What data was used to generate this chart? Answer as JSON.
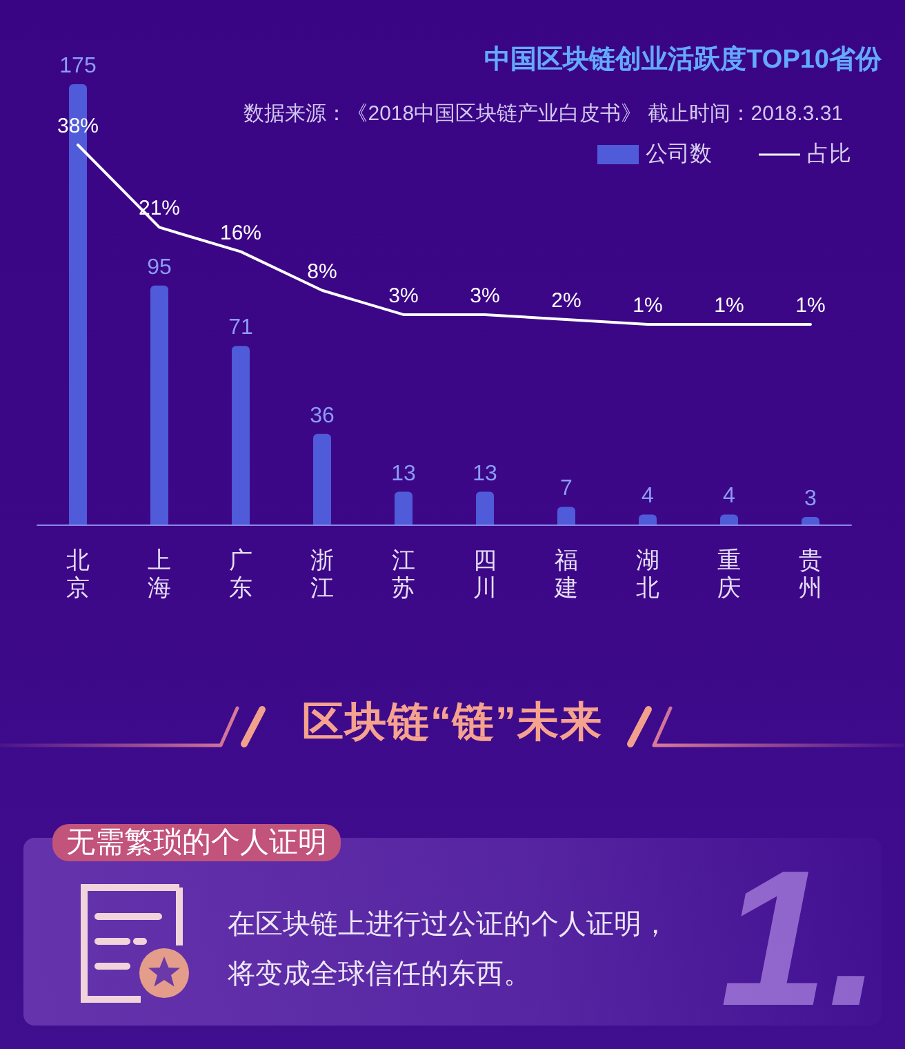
{
  "chart_data": [
    {
      "type": "bar",
      "title": "中国区块链创业活跃度TOP10省份",
      "subtitle": "数据来源：《2018中国区块链产业白皮书》 截止时间：2018.3.31",
      "categories": [
        "北京",
        "上海",
        "广东",
        "浙江",
        "江苏",
        "四川",
        "福建",
        "湖北",
        "重庆",
        "贵州"
      ],
      "series": [
        {
          "name": "公司数",
          "type": "bar",
          "color": "#4f5bd8",
          "values": [
            175,
            95,
            71,
            36,
            13,
            13,
            7,
            4,
            4,
            3
          ],
          "value_labels": [
            "175",
            "95",
            "71",
            "36",
            "13",
            "13",
            "7",
            "4",
            "4",
            "3"
          ]
        },
        {
          "name": "占比",
          "type": "line",
          "axis": "y2",
          "color": "#ffffff",
          "values": [
            38,
            21,
            16,
            8,
            3,
            3,
            2,
            1,
            1,
            1
          ],
          "value_labels": [
            "38%",
            "21%",
            "16%",
            "8%",
            "3%",
            "3%",
            "2%",
            "1%",
            "1%",
            "1%"
          ]
        }
      ],
      "legend": "top right",
      "marker": "none",
      "line_style": "solid"
    },
    {
      "type": "other",
      "title": "区块链“链”未来",
      "subtitle": "无需繁琐的个人证明",
      "annotations": [
        "在区块链上进行过公证的个人证明，将变成全球信任的东西。",
        "1."
      ]
    }
  ]
}
